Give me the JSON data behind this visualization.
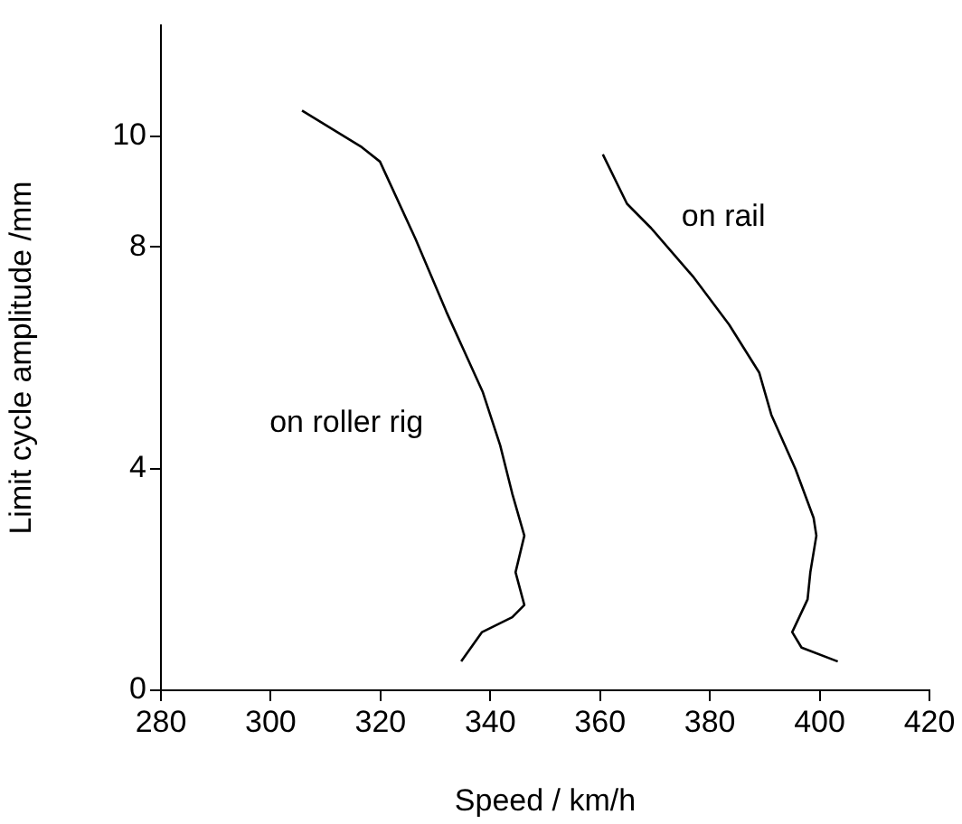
{
  "chart_data": {
    "type": "line",
    "xlabel": "Speed / km/h",
    "ylabel": "Limit cycle amplitude /mm",
    "xlim": [
      280,
      420
    ],
    "xticks": [
      280,
      300,
      320,
      340,
      360,
      380,
      400,
      420
    ],
    "ylim": [
      0,
      12
    ],
    "yticks": [
      0,
      4,
      8,
      10
    ],
    "grid": false,
    "legend": false,
    "marker": "none",
    "line_style": "solid",
    "series": [
      {
        "name": "on roller rig",
        "color": "#000000",
        "x": [
          305.7,
          316.6,
          319.9,
          326.4,
          332.0,
          338.6,
          341.8,
          344.0,
          346.2,
          344.6,
          346.2,
          344.0,
          338.5,
          334.7
        ],
        "values": [
          10.46,
          9.8,
          9.54,
          8.14,
          6.83,
          5.39,
          4.42,
          3.55,
          2.79,
          2.13,
          1.54,
          1.32,
          1.05,
          0.52
        ]
      },
      {
        "name": "on rail",
        "color": "#000000",
        "x": [
          360.5,
          364.9,
          369.3,
          376.9,
          383.5,
          389.0,
          391.2,
          395.6,
          398.9,
          399.4,
          398.3,
          397.8,
          395.0,
          396.7,
          403.3
        ],
        "values": [
          9.67,
          8.78,
          8.34,
          7.47,
          6.6,
          5.73,
          4.97,
          3.99,
          3.11,
          2.79,
          2.13,
          1.64,
          1.05,
          0.77,
          0.52
        ]
      }
    ]
  }
}
